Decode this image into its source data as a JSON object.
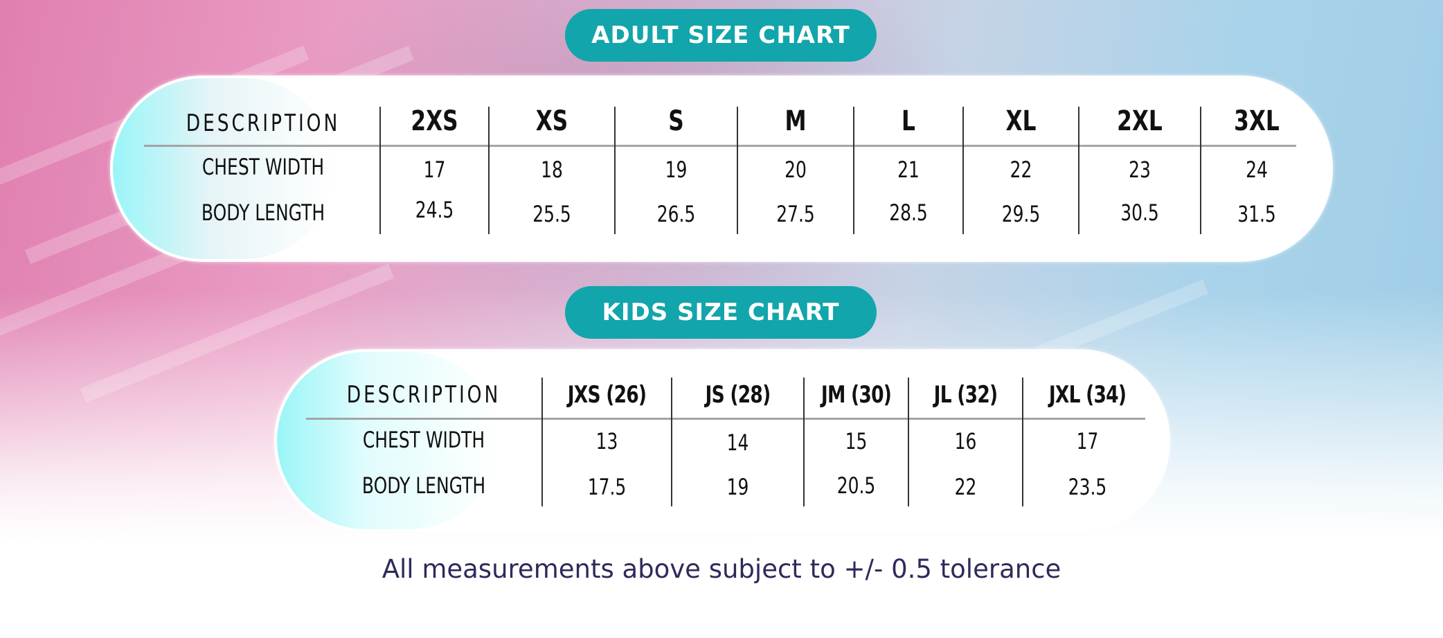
{
  "adult": {
    "title": "ADULT SIZE CHART",
    "description_label": "DESCRIPTION",
    "sizes": [
      "2XS",
      "XS",
      "S",
      "M",
      "L",
      "XL",
      "2XL",
      "3XL"
    ],
    "rows": [
      {
        "label": "CHEST WIDTH",
        "values": [
          "17",
          "18",
          "19",
          "20",
          "21",
          "22",
          "23",
          "24"
        ]
      },
      {
        "label": "BODY LENGTH",
        "values": [
          "24.5",
          "25.5",
          "26.5",
          "27.5",
          "28.5",
          "29.5",
          "30.5",
          "31.5"
        ]
      }
    ]
  },
  "kids": {
    "title": "KIDS SIZE CHART",
    "description_label": "DESCRIPTION",
    "sizes": [
      "JXS (26)",
      "JS (28)",
      "JM (30)",
      "JL (32)",
      "JXL (34)"
    ],
    "rows": [
      {
        "label": "CHEST WIDTH",
        "values": [
          "13",
          "14",
          "15",
          "16",
          "17"
        ]
      },
      {
        "label": "BODY LENGTH",
        "values": [
          "17.5",
          "19",
          "20.5",
          "22",
          "23.5"
        ]
      }
    ]
  },
  "footer_note": "All measurements above subject to +/- 0.5 tolerance",
  "colors": {
    "accent": "#12a5ab",
    "note_text": "#2d2a5a"
  }
}
